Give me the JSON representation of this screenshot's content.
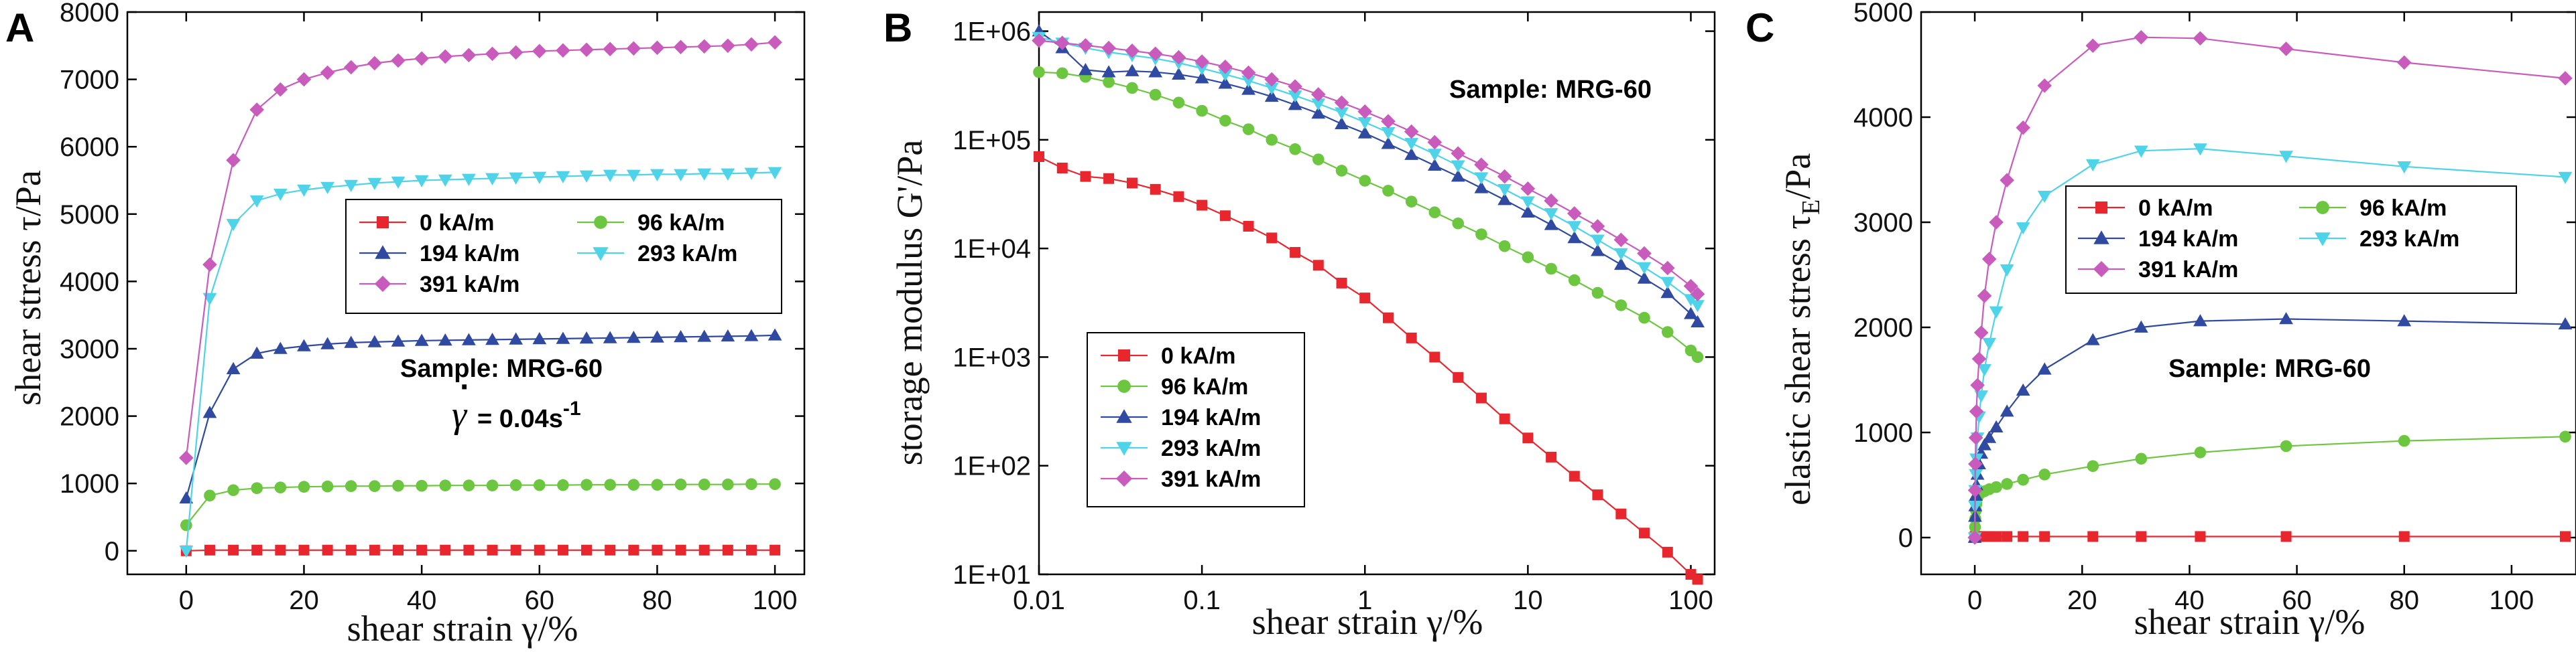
{
  "colors": {
    "0 kA/m": "#e8262e",
    "96 kA/m": "#6cc63f",
    "194 kA/m": "#2f4aa0",
    "293 kA/m": "#4fd3e8",
    "391 kA/m": "#c95bbd"
  },
  "chart_data": [
    {
      "type": "line",
      "panel": "A",
      "xlabel": "shear strain γ/%",
      "ylabel": "shear stress τ/Pa",
      "xlim": [
        -10,
        105
      ],
      "ylim": [
        -350,
        8000
      ],
      "xticks": [
        0,
        20,
        40,
        60,
        80,
        100
      ],
      "yticks": [
        0,
        1000,
        2000,
        3000,
        4000,
        5000,
        6000,
        7000,
        8000
      ],
      "xtick_labels": [
        "0",
        "20",
        "40",
        "60",
        "80",
        "100"
      ],
      "ytick_labels": [
        "0",
        "1000",
        "2000",
        "3000",
        "4000",
        "5000",
        "6000",
        "7000",
        "8000"
      ],
      "annotations": {
        "sample": "Sample: MRG-60",
        "rate_prefix": "= 0.04s",
        "rate_sup": "-1",
        "rate_symbol": "γ"
      },
      "legend": {
        "placement": "center-right",
        "columns": 2
      },
      "series": [
        {
          "name": "0 kA/m",
          "marker": "square",
          "x": [
            0,
            4,
            8,
            12,
            16,
            20,
            24,
            28,
            32,
            36,
            40,
            44,
            48,
            52,
            56,
            60,
            64,
            68,
            72,
            76,
            80,
            84,
            88,
            92,
            96,
            100
          ],
          "y": [
            0,
            10,
            10,
            10,
            10,
            10,
            10,
            10,
            10,
            10,
            10,
            10,
            10,
            10,
            10,
            10,
            10,
            10,
            10,
            10,
            10,
            10,
            10,
            10,
            10,
            10
          ]
        },
        {
          "name": "96 kA/m",
          "marker": "circle",
          "x": [
            0,
            4,
            8,
            12,
            16,
            20,
            24,
            28,
            32,
            36,
            40,
            44,
            48,
            52,
            56,
            60,
            64,
            68,
            72,
            76,
            80,
            84,
            88,
            92,
            96,
            100
          ],
          "y": [
            380,
            820,
            900,
            930,
            940,
            950,
            955,
            960,
            960,
            965,
            965,
            970,
            970,
            970,
            975,
            975,
            975,
            980,
            980,
            980,
            980,
            985,
            985,
            985,
            990,
            990
          ]
        },
        {
          "name": "194 kA/m",
          "marker": "triangle-up",
          "x": [
            0,
            4,
            8,
            12,
            16,
            20,
            24,
            28,
            32,
            36,
            40,
            44,
            48,
            52,
            56,
            60,
            64,
            68,
            72,
            76,
            80,
            84,
            88,
            92,
            96,
            100
          ],
          "y": [
            780,
            2050,
            2700,
            2930,
            3000,
            3040,
            3070,
            3090,
            3100,
            3110,
            3120,
            3125,
            3130,
            3135,
            3140,
            3145,
            3150,
            3155,
            3160,
            3165,
            3170,
            3175,
            3180,
            3185,
            3190,
            3200
          ]
        },
        {
          "name": "293 kA/m",
          "marker": "triangle-down",
          "x": [
            0,
            4,
            8,
            12,
            16,
            20,
            24,
            28,
            32,
            36,
            40,
            44,
            48,
            52,
            56,
            60,
            64,
            68,
            72,
            76,
            80,
            84,
            88,
            92,
            96,
            100
          ],
          "y": [
            0,
            3750,
            4850,
            5200,
            5300,
            5360,
            5400,
            5430,
            5460,
            5480,
            5500,
            5510,
            5520,
            5530,
            5540,
            5550,
            5560,
            5570,
            5580,
            5580,
            5590,
            5590,
            5600,
            5600,
            5610,
            5620
          ]
        },
        {
          "name": "391 kA/m",
          "marker": "diamond",
          "x": [
            0,
            4,
            8,
            12,
            16,
            20,
            24,
            28,
            32,
            36,
            40,
            44,
            48,
            52,
            56,
            60,
            64,
            68,
            72,
            76,
            80,
            84,
            88,
            92,
            96,
            100
          ],
          "y": [
            1380,
            4250,
            5800,
            6550,
            6850,
            7000,
            7100,
            7180,
            7240,
            7280,
            7310,
            7340,
            7360,
            7380,
            7400,
            7420,
            7430,
            7440,
            7450,
            7460,
            7470,
            7480,
            7490,
            7500,
            7520,
            7550
          ]
        }
      ]
    },
    {
      "type": "line",
      "panel": "B",
      "xscale": "log",
      "yscale": "log",
      "xlabel": "shear strain γ/%",
      "ylabel": "storage modulus G'/Pa",
      "xlim": [
        0.01,
        140
      ],
      "ylim": [
        10,
        1500000
      ],
      "xticks": [
        0.01,
        0.1,
        1,
        10,
        100
      ],
      "yticks": [
        10,
        100,
        1000,
        10000,
        100000,
        1000000
      ],
      "xtick_labels": [
        "0.01",
        "0.1",
        "1",
        "10",
        "100"
      ],
      "ytick_labels": [
        "1E+01",
        "1E+02",
        "1E+03",
        "1E+04",
        "1E+05",
        "1E+06"
      ],
      "annotations": {
        "sample": "Sample: MRG-60"
      },
      "legend": {
        "placement": "bottom-left",
        "columns": 1
      },
      "series": [
        {
          "name": "0 kA/m",
          "marker": "square",
          "x": [
            0.01,
            0.0139,
            0.0193,
            0.0268,
            0.0373,
            0.0518,
            0.072,
            0.1,
            0.139,
            0.193,
            0.268,
            0.373,
            0.518,
            0.72,
            1.0,
            1.39,
            1.93,
            2.68,
            3.73,
            5.18,
            7.2,
            10.0,
            13.9,
            19.3,
            26.8,
            37.3,
            51.8,
            72.0,
            100.0,
            110.0
          ],
          "y": [
            70000,
            55000,
            46000,
            44000,
            40000,
            35000,
            30000,
            25000,
            20000,
            16000,
            12500,
            9200,
            7000,
            4800,
            3500,
            2300,
            1500,
            1000,
            650,
            420,
            270,
            180,
            120,
            80,
            54,
            36,
            24,
            16,
            10,
            9
          ]
        },
        {
          "name": "96 kA/m",
          "marker": "circle",
          "x": [
            0.01,
            0.0139,
            0.0193,
            0.0268,
            0.0373,
            0.0518,
            0.072,
            0.1,
            0.139,
            0.193,
            0.268,
            0.373,
            0.518,
            0.72,
            1.0,
            1.39,
            1.93,
            2.68,
            3.73,
            5.18,
            7.2,
            10.0,
            13.9,
            19.3,
            26.8,
            37.3,
            51.8,
            72.0,
            100.0,
            110.0
          ],
          "y": [
            420000,
            410000,
            380000,
            340000,
            300000,
            260000,
            220000,
            185000,
            150000,
            125000,
            100000,
            82000,
            66000,
            52000,
            42000,
            34000,
            27000,
            21500,
            17000,
            13500,
            10500,
            8300,
            6500,
            5100,
            3900,
            3000,
            2300,
            1700,
            1150,
            1000
          ]
        },
        {
          "name": "194 kA/m",
          "marker": "triangle-up",
          "x": [
            0.01,
            0.0139,
            0.0193,
            0.0268,
            0.0373,
            0.0518,
            0.072,
            0.1,
            0.139,
            0.193,
            0.268,
            0.373,
            0.518,
            0.72,
            1.0,
            1.39,
            1.93,
            2.68,
            3.73,
            5.18,
            7.2,
            10.0,
            13.9,
            19.3,
            26.8,
            37.3,
            51.8,
            72.0,
            100.0,
            110.0
          ],
          "y": [
            1000000,
            700000,
            440000,
            420000,
            430000,
            420000,
            400000,
            370000,
            330000,
            290000,
            250000,
            210000,
            175000,
            140000,
            115000,
            92000,
            73000,
            58000,
            46000,
            36000,
            28000,
            21500,
            16500,
            12500,
            9500,
            7100,
            5300,
            3900,
            2500,
            2100
          ]
        },
        {
          "name": "293 kA/m",
          "marker": "triangle-down",
          "x": [
            0.01,
            0.0139,
            0.0193,
            0.0268,
            0.0373,
            0.0518,
            0.072,
            0.1,
            0.139,
            0.193,
            0.268,
            0.373,
            0.518,
            0.72,
            1.0,
            1.39,
            1.93,
            2.68,
            3.73,
            5.18,
            7.2,
            10.0,
            13.9,
            19.3,
            26.8,
            37.3,
            51.8,
            72.0,
            100.0,
            110.0
          ],
          "y": [
            880000,
            780000,
            700000,
            640000,
            600000,
            560000,
            510000,
            455000,
            400000,
            350000,
            300000,
            255000,
            215000,
            178000,
            145000,
            117000,
            93000,
            74000,
            58000,
            45000,
            35000,
            27000,
            21000,
            16000,
            12000,
            9000,
            6700,
            4900,
            3400,
            3000
          ]
        },
        {
          "name": "391 kA/m",
          "marker": "diamond",
          "x": [
            0.01,
            0.0139,
            0.0193,
            0.0268,
            0.0373,
            0.0518,
            0.072,
            0.1,
            0.139,
            0.193,
            0.268,
            0.373,
            0.518,
            0.72,
            1.0,
            1.39,
            1.93,
            2.68,
            3.73,
            5.18,
            7.2,
            10.0,
            13.9,
            19.3,
            26.8,
            37.3,
            51.8,
            72.0,
            100.0,
            110.0
          ],
          "y": [
            820000,
            780000,
            740000,
            700000,
            660000,
            620000,
            575000,
            525000,
            470000,
            415000,
            360000,
            310000,
            262000,
            220000,
            182000,
            148000,
            119000,
            95000,
            75000,
            59000,
            46000,
            35500,
            27500,
            21000,
            16000,
            12000,
            9000,
            6600,
            4500,
            3800
          ]
        }
      ]
    },
    {
      "type": "line",
      "panel": "C",
      "xlabel": "shear strain γ/%",
      "ylabel_prefix": "elastic shear stress τ",
      "ylabel_sub": "E",
      "ylabel_suffix": "/Pa",
      "xlim": [
        -10,
        112
      ],
      "ylim": [
        -350,
        5000
      ],
      "xticks": [
        0,
        20,
        40,
        60,
        80,
        100
      ],
      "yticks": [
        0,
        1000,
        2000,
        3000,
        4000,
        5000
      ],
      "xtick_labels": [
        "0",
        "20",
        "40",
        "60",
        "80",
        "100"
      ],
      "ytick_labels": [
        "0",
        "1000",
        "2000",
        "3000",
        "4000",
        "5000"
      ],
      "annotations": {
        "sample": "Sample: MRG-60"
      },
      "legend": {
        "placement": "center",
        "columns": 2
      },
      "series": [
        {
          "name": "0 kA/m",
          "marker": "square",
          "x": [
            0,
            0.05,
            0.1,
            0.2,
            0.3,
            0.5,
            0.8,
            1.2,
            1.8,
            2.7,
            4.0,
            6.0,
            9.0,
            13.0,
            22.0,
            31.0,
            42.0,
            58.0,
            80.0,
            110.0
          ],
          "y": [
            0,
            10,
            10,
            10,
            10,
            10,
            10,
            10,
            10,
            10,
            10,
            10,
            10,
            10,
            10,
            10,
            10,
            10,
            10,
            10
          ]
        },
        {
          "name": "96 kA/m",
          "marker": "circle",
          "x": [
            0,
            0.05,
            0.1,
            0.2,
            0.3,
            0.5,
            0.8,
            1.2,
            1.8,
            2.7,
            4.0,
            6.0,
            9.0,
            13.0,
            22.0,
            31.0,
            42.0,
            58.0,
            80.0,
            110.0
          ],
          "y": [
            0,
            100,
            180,
            260,
            320,
            380,
            410,
            430,
            440,
            460,
            480,
            510,
            550,
            600,
            680,
            750,
            810,
            870,
            920,
            960
          ]
        },
        {
          "name": "194 kA/m",
          "marker": "triangle-up",
          "x": [
            0,
            0.05,
            0.1,
            0.2,
            0.3,
            0.5,
            0.8,
            1.2,
            1.8,
            2.7,
            4.0,
            6.0,
            9.0,
            13.0,
            22.0,
            31.0,
            42.0,
            58.0,
            80.0,
            110.0
          ],
          "y": [
            0,
            200,
            300,
            400,
            500,
            600,
            700,
            800,
            880,
            950,
            1050,
            1200,
            1400,
            1600,
            1880,
            2000,
            2060,
            2080,
            2060,
            2030
          ]
        },
        {
          "name": "293 kA/m",
          "marker": "triangle-down",
          "x": [
            0,
            0.05,
            0.1,
            0.2,
            0.3,
            0.5,
            0.8,
            1.2,
            1.8,
            2.7,
            4.0,
            6.0,
            9.0,
            13.0,
            22.0,
            31.0,
            42.0,
            58.0,
            80.0,
            110.0
          ],
          "y": [
            0,
            300,
            450,
            600,
            750,
            950,
            1150,
            1350,
            1600,
            1850,
            2150,
            2550,
            2950,
            3250,
            3550,
            3680,
            3700,
            3630,
            3530,
            3430
          ]
        },
        {
          "name": "391 kA/m",
          "marker": "diamond",
          "x": [
            0,
            0.05,
            0.1,
            0.2,
            0.3,
            0.5,
            0.8,
            1.2,
            1.8,
            2.7,
            4.0,
            6.0,
            9.0,
            13.0,
            22.0,
            31.0,
            42.0,
            58.0,
            80.0,
            110.0
          ],
          "y": [
            0,
            450,
            700,
            950,
            1200,
            1450,
            1700,
            1950,
            2300,
            2650,
            3000,
            3400,
            3900,
            4300,
            4680,
            4760,
            4750,
            4650,
            4520,
            4370
          ]
        }
      ]
    }
  ]
}
